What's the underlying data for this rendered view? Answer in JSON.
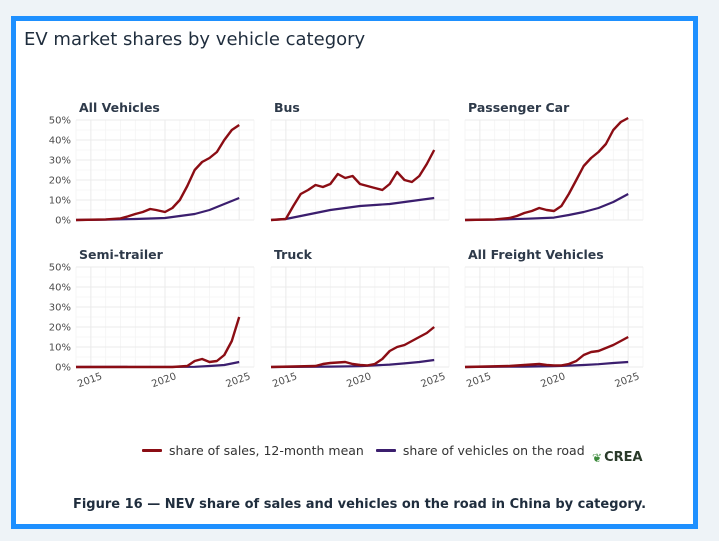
{
  "title": "EV market shares by vehicle category",
  "caption": "Figure 16 — NEV share of sales and vehicles on the road in China by category.",
  "logo": "CREA",
  "colors": {
    "sales": "#8b0d14",
    "road": "#3b1e6e",
    "frame": "#1e90ff",
    "grid": "#ebebeb"
  },
  "legend": {
    "sales_label": "share of sales, 12-month mean",
    "road_label": "share of vehicles on the road"
  },
  "chart_data": {
    "type": "line",
    "facets": [
      "All Vehicles",
      "Bus",
      "Passenger Car",
      "Semi-trailer",
      "Truck",
      "All Freight Vehicles"
    ],
    "x_ticks": [
      2015,
      2020,
      2025
    ],
    "xlim": [
      2014.0,
      2026.0
    ],
    "y_ticks": [
      "0%",
      "10%",
      "20%",
      "30%",
      "40%",
      "50%"
    ],
    "ylim": [
      0,
      50
    ],
    "grid": true,
    "legend_position": "bottom",
    "panels": [
      {
        "title": "All Vehicles",
        "sales": [
          [
            2014,
            0
          ],
          [
            2016,
            0.3
          ],
          [
            2017,
            0.8
          ],
          [
            2017.5,
            1.8
          ],
          [
            2018,
            3
          ],
          [
            2018.5,
            4
          ],
          [
            2019,
            5.5
          ],
          [
            2019.4,
            5
          ],
          [
            2020,
            4
          ],
          [
            2020.5,
            6
          ],
          [
            2021,
            10
          ],
          [
            2021.5,
            17
          ],
          [
            2022,
            25
          ],
          [
            2022.5,
            29
          ],
          [
            2023,
            31
          ],
          [
            2023.5,
            34
          ],
          [
            2024,
            40
          ],
          [
            2024.5,
            45
          ],
          [
            2025,
            47.5
          ]
        ],
        "road": [
          [
            2014,
            0
          ],
          [
            2016,
            0.2
          ],
          [
            2018,
            0.5
          ],
          [
            2020,
            1
          ],
          [
            2021,
            2
          ],
          [
            2022,
            3
          ],
          [
            2023,
            5
          ],
          [
            2024,
            8
          ],
          [
            2025,
            11
          ]
        ]
      },
      {
        "title": "Bus",
        "sales": [
          [
            2014,
            0
          ],
          [
            2015,
            0.5
          ],
          [
            2015.5,
            7
          ],
          [
            2016,
            13
          ],
          [
            2016.5,
            15
          ],
          [
            2017,
            17.5
          ],
          [
            2017.5,
            16.5
          ],
          [
            2018,
            18
          ],
          [
            2018.5,
            23
          ],
          [
            2019,
            21
          ],
          [
            2019.5,
            22
          ],
          [
            2020,
            18
          ],
          [
            2020.5,
            17
          ],
          [
            2021,
            16
          ],
          [
            2021.5,
            15
          ],
          [
            2022,
            18
          ],
          [
            2022.5,
            24
          ],
          [
            2023,
            20
          ],
          [
            2023.5,
            19
          ],
          [
            2024,
            22
          ],
          [
            2024.5,
            28
          ],
          [
            2025,
            35
          ]
        ],
        "road": [
          [
            2014,
            0
          ],
          [
            2015,
            0.5
          ],
          [
            2016,
            2
          ],
          [
            2017,
            3.5
          ],
          [
            2018,
            5
          ],
          [
            2019,
            6
          ],
          [
            2020,
            7
          ],
          [
            2021,
            7.5
          ],
          [
            2022,
            8
          ],
          [
            2023,
            9
          ],
          [
            2024,
            10
          ],
          [
            2025,
            11
          ]
        ]
      },
      {
        "title": "Passenger Car",
        "sales": [
          [
            2014,
            0
          ],
          [
            2016,
            0.3
          ],
          [
            2017,
            1
          ],
          [
            2017.5,
            2
          ],
          [
            2018,
            3.5
          ],
          [
            2018.5,
            4.5
          ],
          [
            2019,
            6
          ],
          [
            2019.5,
            5
          ],
          [
            2020,
            4.5
          ],
          [
            2020.5,
            7
          ],
          [
            2021,
            13
          ],
          [
            2021.5,
            20
          ],
          [
            2022,
            27
          ],
          [
            2022.5,
            31
          ],
          [
            2023,
            34
          ],
          [
            2023.5,
            38
          ],
          [
            2024,
            45
          ],
          [
            2024.5,
            49
          ],
          [
            2025,
            51
          ]
        ],
        "road": [
          [
            2014,
            0
          ],
          [
            2016,
            0.2
          ],
          [
            2018,
            0.6
          ],
          [
            2020,
            1.2
          ],
          [
            2021,
            2.5
          ],
          [
            2022,
            4
          ],
          [
            2023,
            6
          ],
          [
            2024,
            9
          ],
          [
            2025,
            13
          ]
        ]
      },
      {
        "title": "Semi-trailer",
        "sales": [
          [
            2014,
            0
          ],
          [
            2020.5,
            0
          ],
          [
            2021.5,
            0.5
          ],
          [
            2022,
            3
          ],
          [
            2022.5,
            4
          ],
          [
            2023,
            2.5
          ],
          [
            2023.5,
            3
          ],
          [
            2024,
            6
          ],
          [
            2024.5,
            13
          ],
          [
            2025,
            25
          ]
        ],
        "road": [
          [
            2014,
            0
          ],
          [
            2022,
            0.1
          ],
          [
            2023,
            0.5
          ],
          [
            2024,
            1
          ],
          [
            2025,
            2.5
          ]
        ]
      },
      {
        "title": "Truck",
        "sales": [
          [
            2014,
            0
          ],
          [
            2017,
            0.5
          ],
          [
            2017.5,
            1.5
          ],
          [
            2018,
            2
          ],
          [
            2019,
            2.5
          ],
          [
            2019.5,
            1.5
          ],
          [
            2020,
            1
          ],
          [
            2020.5,
            0.8
          ],
          [
            2021,
            1.5
          ],
          [
            2021.5,
            4
          ],
          [
            2022,
            8
          ],
          [
            2022.5,
            10
          ],
          [
            2023,
            11
          ],
          [
            2023.5,
            13
          ],
          [
            2024,
            15
          ],
          [
            2024.5,
            17
          ],
          [
            2025,
            20
          ]
        ],
        "road": [
          [
            2014,
            0
          ],
          [
            2018,
            0.2
          ],
          [
            2020,
            0.4
          ],
          [
            2021,
            0.8
          ],
          [
            2022,
            1.2
          ],
          [
            2023,
            1.8
          ],
          [
            2024,
            2.5
          ],
          [
            2025,
            3.5
          ]
        ]
      },
      {
        "title": "All Freight Vehicles",
        "sales": [
          [
            2014,
            0
          ],
          [
            2017,
            0.5
          ],
          [
            2018,
            1
          ],
          [
            2019,
            1.5
          ],
          [
            2019.5,
            1
          ],
          [
            2020,
            0.8
          ],
          [
            2020.5,
            0.8
          ],
          [
            2021,
            1.5
          ],
          [
            2021.5,
            3
          ],
          [
            2022,
            6
          ],
          [
            2022.5,
            7.5
          ],
          [
            2023,
            8
          ],
          [
            2023.5,
            9.5
          ],
          [
            2024,
            11
          ],
          [
            2024.5,
            13
          ],
          [
            2025,
            15
          ]
        ],
        "road": [
          [
            2014,
            0
          ],
          [
            2018,
            0.2
          ],
          [
            2020,
            0.4
          ],
          [
            2021,
            0.7
          ],
          [
            2022,
            1
          ],
          [
            2023,
            1.4
          ],
          [
            2024,
            2
          ],
          [
            2025,
            2.5
          ]
        ]
      }
    ]
  }
}
